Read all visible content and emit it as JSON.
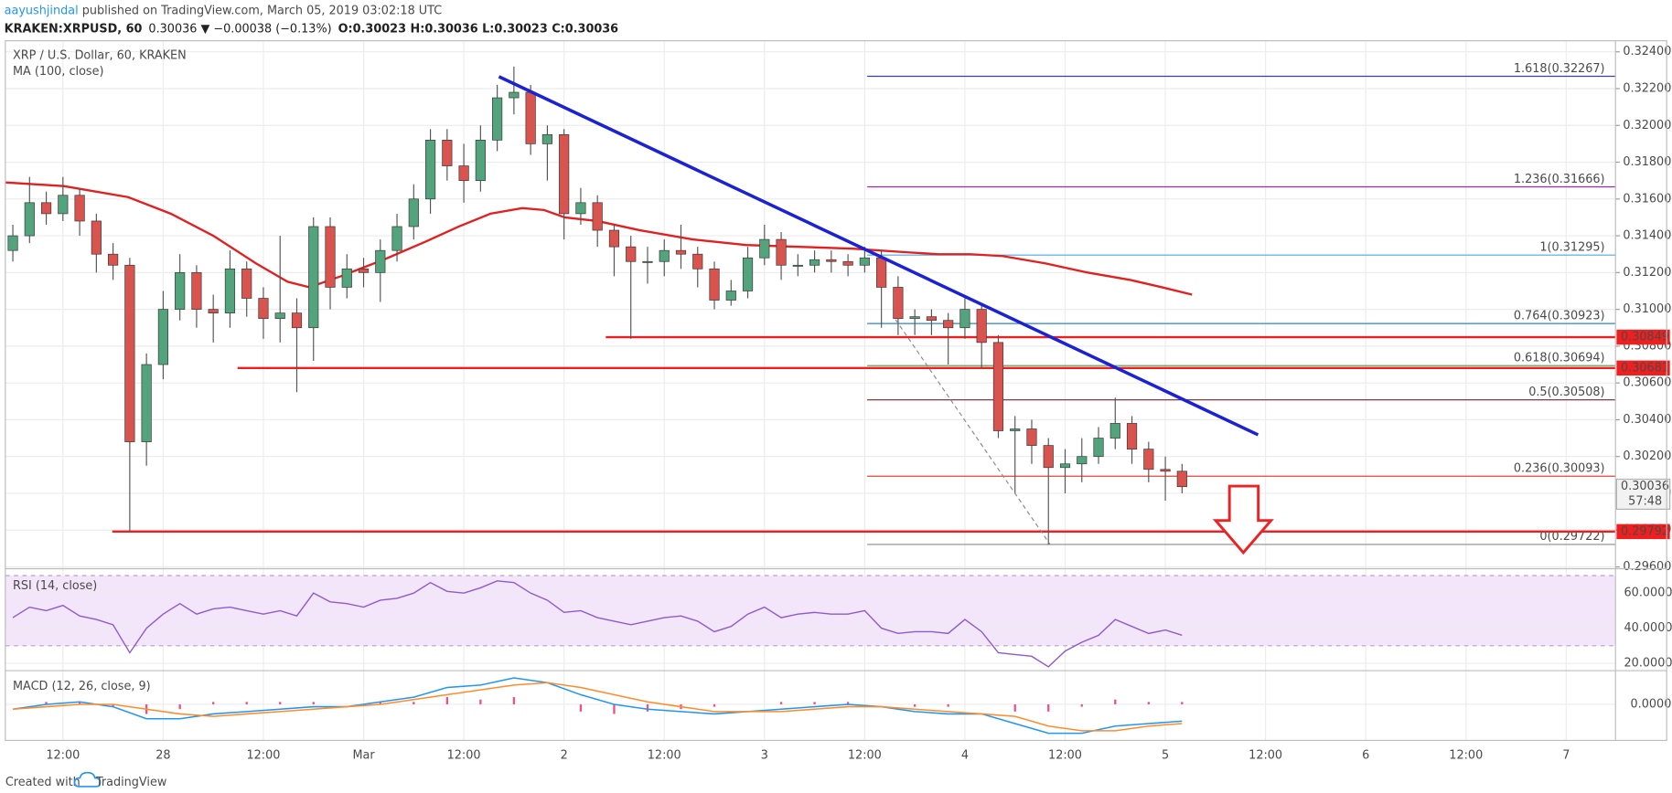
{
  "header": {
    "author": "aayushjindal",
    "published": " published on TradingView.com, March 05, 2019 03:02:18 UTC",
    "symbol": "KRAKEN:XRPUSD, 60",
    "quote": "0.30036 ▼ −0.00038 (−0.13%)",
    "ohlc": "O:0.30023 H:0.30036 L:0.30023 C:0.30036"
  },
  "footer": {
    "created": "Created with",
    "brand": "TradingView"
  },
  "chart_data": {
    "type": "candlestick",
    "title": "XRP / U.S. Dollar, 60, KRAKEN",
    "up_color": "#53a37c",
    "down_color": "#d9534f",
    "grid": true,
    "xlim": [
      -18.9,
      173.9
    ],
    "xticks": [
      {
        "value": -12,
        "label": "12:00"
      },
      {
        "value": 0,
        "label": "28"
      },
      {
        "value": 12,
        "label": "12:00"
      },
      {
        "value": 24,
        "label": "Mar"
      },
      {
        "value": 36,
        "label": "12:00"
      },
      {
        "value": 48,
        "label": "2"
      },
      {
        "value": 60,
        "label": "12:00"
      },
      {
        "value": 72,
        "label": "3"
      },
      {
        "value": 84,
        "label": "12:00"
      },
      {
        "value": 96,
        "label": "4"
      },
      {
        "value": 108,
        "label": "12:00"
      },
      {
        "value": 120,
        "label": "5"
      },
      {
        "value": 132,
        "label": "12:00"
      },
      {
        "value": 144,
        "label": "6"
      },
      {
        "value": 156,
        "label": "12:00"
      },
      {
        "value": 168,
        "label": "7"
      }
    ],
    "ylim": [
      0.2959,
      0.3246
    ],
    "yticks": [
      {
        "value": 0.296,
        "label": "0.29600"
      },
      {
        "value": 0.298,
        "label": "0.29800"
      },
      {
        "value": 0.3,
        "label": "0.30000"
      },
      {
        "value": 0.302,
        "label": "0.30200"
      },
      {
        "value": 0.304,
        "label": "0.30400"
      },
      {
        "value": 0.306,
        "label": "0.30600"
      },
      {
        "value": 0.308,
        "label": "0.30800"
      },
      {
        "value": 0.31,
        "label": "0.31000"
      },
      {
        "value": 0.312,
        "label": "0.31200"
      },
      {
        "value": 0.314,
        "label": "0.31400"
      },
      {
        "value": 0.316,
        "label": "0.31600"
      },
      {
        "value": 0.318,
        "label": "0.31800"
      },
      {
        "value": 0.32,
        "label": "0.32000"
      },
      {
        "value": 0.322,
        "label": "0.32200"
      },
      {
        "value": 0.324,
        "label": "0.32400"
      }
    ],
    "x": [
      -18,
      -16,
      -14,
      -12,
      -10,
      -8,
      -6,
      -4,
      -2,
      0,
      2,
      4,
      6,
      8,
      10,
      12,
      14,
      16,
      18,
      20,
      22,
      24,
      26,
      28,
      30,
      32,
      34,
      36,
      38,
      40,
      42,
      44,
      46,
      48,
      50,
      52,
      54,
      56,
      58,
      60,
      62,
      64,
      66,
      68,
      70,
      72,
      74,
      76,
      78,
      80,
      82,
      84,
      86,
      88,
      90,
      92,
      94,
      96,
      98,
      100,
      102,
      104,
      106,
      108,
      110,
      112,
      114,
      116,
      118,
      120,
      122
    ],
    "open": [
      0.3132,
      0.314,
      0.3158,
      0.3152,
      0.3162,
      0.3148,
      0.313,
      0.3124,
      0.3028,
      0.307,
      0.31,
      0.312,
      0.31,
      0.3098,
      0.3122,
      0.3106,
      0.3095,
      0.3098,
      0.309,
      0.3145,
      0.3112,
      0.3122,
      0.312,
      0.3132,
      0.3145,
      0.316,
      0.3192,
      0.3178,
      0.317,
      0.3192,
      0.3215,
      0.3218,
      0.319,
      0.3195,
      0.3152,
      0.3158,
      0.3143,
      0.3134,
      0.3126,
      0.3126,
      0.3132,
      0.313,
      0.3122,
      0.3105,
      0.311,
      0.3128,
      0.3138,
      0.3124,
      0.3124,
      0.3127,
      0.3126,
      0.3124,
      0.3128,
      0.3112,
      0.3095,
      0.3096,
      0.3094,
      0.309,
      0.31,
      0.3082,
      0.3034,
      0.3035,
      0.3026,
      0.3014,
      0.3016,
      0.302,
      0.303,
      0.3038,
      0.3024,
      0.3013,
      0.3012
    ],
    "high": [
      0.3146,
      0.3172,
      0.3164,
      0.3172,
      0.3166,
      0.3152,
      0.3136,
      0.3128,
      0.3076,
      0.311,
      0.313,
      0.3124,
      0.3108,
      0.3132,
      0.3126,
      0.3112,
      0.314,
      0.3106,
      0.315,
      0.315,
      0.313,
      0.3128,
      0.3138,
      0.3152,
      0.3168,
      0.3198,
      0.3198,
      0.319,
      0.32,
      0.3222,
      0.3232,
      0.3222,
      0.32,
      0.3198,
      0.3166,
      0.3162,
      0.3146,
      0.314,
      0.3134,
      0.3138,
      0.3146,
      0.3134,
      0.3126,
      0.3116,
      0.3134,
      0.3146,
      0.3142,
      0.313,
      0.3132,
      0.3132,
      0.313,
      0.3134,
      0.3132,
      0.3118,
      0.31,
      0.31,
      0.3098,
      0.3106,
      0.3102,
      0.3086,
      0.3042,
      0.304,
      0.303,
      0.3024,
      0.303,
      0.3036,
      0.3052,
      0.3042,
      0.3028,
      0.302,
      0.3016
    ],
    "low": [
      0.3126,
      0.3136,
      0.3146,
      0.3148,
      0.314,
      0.312,
      0.3116,
      0.2979,
      0.3015,
      0.3062,
      0.3094,
      0.309,
      0.3082,
      0.309,
      0.3096,
      0.3084,
      0.3082,
      0.3055,
      0.3072,
      0.31,
      0.3106,
      0.3112,
      0.3104,
      0.3126,
      0.3138,
      0.3152,
      0.317,
      0.3158,
      0.3164,
      0.3186,
      0.3206,
      0.3184,
      0.317,
      0.3138,
      0.3146,
      0.3134,
      0.3118,
      0.3084,
      0.3114,
      0.3118,
      0.3122,
      0.3112,
      0.31,
      0.3102,
      0.3106,
      0.3124,
      0.3116,
      0.3118,
      0.312,
      0.312,
      0.3118,
      0.312,
      0.309,
      0.3086,
      0.3086,
      0.3086,
      0.307,
      0.3084,
      0.3068,
      0.303,
      0.3,
      0.3016,
      0.2972,
      0.3,
      0.3006,
      0.3016,
      0.3024,
      0.3016,
      0.3006,
      0.2996,
      0.3
    ],
    "close": [
      0.314,
      0.3158,
      0.3152,
      0.3162,
      0.3148,
      0.313,
      0.3124,
      0.3028,
      0.307,
      0.31,
      0.312,
      0.31,
      0.3098,
      0.3122,
      0.3106,
      0.3095,
      0.3098,
      0.309,
      0.3145,
      0.3112,
      0.3122,
      0.312,
      0.3132,
      0.3145,
      0.316,
      0.3192,
      0.3178,
      0.317,
      0.3192,
      0.3215,
      0.3218,
      0.319,
      0.3195,
      0.3152,
      0.3158,
      0.3143,
      0.3134,
      0.3126,
      0.3126,
      0.3132,
      0.313,
      0.3122,
      0.3105,
      0.311,
      0.3128,
      0.3138,
      0.3124,
      0.3124,
      0.3127,
      0.3126,
      0.3124,
      0.3128,
      0.3112,
      0.3095,
      0.3096,
      0.3094,
      0.309,
      0.31,
      0.3082,
      0.3034,
      0.3035,
      0.3026,
      0.3014,
      0.3016,
      0.302,
      0.303,
      0.3038,
      0.3024,
      0.3013,
      0.3012,
      0.30036
    ],
    "ma": {
      "name": "MA (100, close)",
      "color": "#e31f1f",
      "x": [
        -18.9,
        -11.9,
        -4.2,
        0.9,
        6.0,
        11.1,
        14.9,
        17.5,
        21.3,
        26.4,
        31.5,
        35.4,
        39.2,
        43.0,
        45.6,
        48.1,
        52.0,
        57.1,
        63.4,
        69.8,
        76.2,
        82.6,
        89.0,
        92.8,
        96.6,
        100.5,
        105.6,
        110.7,
        115.8,
        119.6,
        123.2
      ],
      "values": [
        0.3169,
        0.3167,
        0.3161,
        0.3152,
        0.314,
        0.3125,
        0.3115,
        0.3112,
        0.3118,
        0.3127,
        0.3137,
        0.3145,
        0.3152,
        0.3155,
        0.3154,
        0.315,
        0.3148,
        0.3143,
        0.3138,
        0.3135,
        0.3134,
        0.3133,
        0.3131,
        0.313,
        0.313,
        0.3129,
        0.3125,
        0.312,
        0.3116,
        0.3112,
        0.3108
      ]
    },
    "trendline": {
      "color": "#1b22d6",
      "x": [
        40.2,
        131.1
      ],
      "values": [
        0.32265,
        0.30318
      ]
    },
    "fib_guide": {
      "color": "#8a8a8a",
      "x": [
        87.7,
        106.2
      ],
      "values": [
        0.30944,
        0.29722
      ]
    },
    "fib_x": [
      84.3,
      173.9
    ],
    "fib_levels": [
      {
        "value": 0.32267,
        "label": "1.618(0.32267)",
        "color": "#3340a8"
      },
      {
        "value": 0.31666,
        "label": "1.236(0.31666)",
        "color": "#9c27b0"
      },
      {
        "value": 0.31295,
        "label": "1(0.31295)",
        "color": "#4aa8e0"
      },
      {
        "value": 0.30923,
        "label": "0.764(0.30923)",
        "color": "#2a86c8"
      },
      {
        "value": 0.30694,
        "label": "0.618(0.30694)",
        "color": "#3fa14a"
      },
      {
        "value": 0.30508,
        "label": "0.5(0.30508)",
        "color": "#7a1f2b"
      },
      {
        "value": 0.30093,
        "label": "0.236(0.30093)",
        "color": "#e0453a"
      },
      {
        "value": 0.29722,
        "label": "0(0.29722)",
        "color": "#8a8a8a"
      }
    ],
    "support_color": "#f01e1e",
    "support_lines": [
      {
        "x": [
          53.0,
          173.9
        ],
        "value": 0.30849
      },
      {
        "x": [
          8.9,
          173.9
        ],
        "value": 0.30681
      },
      {
        "x": [
          -6.1,
          173.9
        ],
        "value": 0.29792
      }
    ],
    "last_price": 0.30036,
    "countdown": "57:48",
    "rsi": {
      "title": "RSI (14, close)",
      "color": "#8e5ad0",
      "band": [
        30,
        70
      ],
      "ylim": [
        15.8,
        73.9
      ],
      "yticks": [
        {
          "value": 20,
          "label": "20.0000"
        },
        {
          "value": 40,
          "label": "40.0000"
        },
        {
          "value": 60,
          "label": "60.0000"
        }
      ],
      "values": [
        46,
        52,
        50,
        53,
        47,
        45,
        42,
        26,
        40,
        48,
        54,
        48,
        51,
        52,
        50,
        48,
        50,
        47,
        60,
        55,
        54,
        52,
        56,
        57,
        60,
        66,
        61,
        60,
        63,
        67,
        66,
        60,
        56,
        49,
        50,
        46,
        44,
        42,
        44,
        46,
        47,
        44,
        38,
        41,
        48,
        52,
        46,
        48,
        49,
        48,
        48,
        50,
        40,
        37,
        38,
        38,
        37,
        45,
        38,
        26,
        25,
        24,
        18,
        27,
        32,
        36,
        45,
        41,
        37,
        39,
        36
      ]
    },
    "macd": {
      "title": "MACD (12, 26, close, 9)",
      "macd_color": "#2196f3",
      "signal_color": "#ff8c2a",
      "histogram_color": "#f0508a",
      "ylim": [
        -0.0015,
        0.0014
      ],
      "yticks": [
        {
          "value": 0,
          "label": "0.0000"
        }
      ],
      "x": [
        -18,
        -14,
        -10,
        -6,
        -2,
        2,
        6,
        10,
        14,
        18,
        22,
        26,
        30,
        34,
        38,
        42,
        46,
        50,
        54,
        58,
        62,
        66,
        70,
        74,
        78,
        82,
        86,
        90,
        94,
        98,
        102,
        106,
        110,
        114,
        118,
        122
      ],
      "macd_values": [
        -0.0002,
        0.0,
        0.0001,
        -0.0001,
        -0.0006,
        -0.0006,
        -0.0004,
        -0.0003,
        -0.0002,
        -0.0001,
        -0.0001,
        0.0001,
        0.0003,
        0.0007,
        0.0008,
        0.0011,
        0.0009,
        0.0004,
        0.0,
        -0.0002,
        -0.0003,
        -0.0004,
        -0.0003,
        -0.0002,
        -0.0001,
        0.0,
        -0.0001,
        -0.0003,
        -0.0004,
        -0.0004,
        -0.0008,
        -0.0012,
        -0.0012,
        -0.0009,
        -0.0008,
        -0.0007
      ],
      "signal_values": [
        -0.0002,
        -0.0001,
        0.0,
        0.0,
        -0.0002,
        -0.0004,
        -0.0005,
        -0.0004,
        -0.0003,
        -0.0002,
        -0.0001,
        0.0,
        0.0002,
        0.0004,
        0.0006,
        0.0008,
        0.0009,
        0.0007,
        0.0004,
        0.0001,
        -0.0001,
        -0.0003,
        -0.0003,
        -0.0003,
        -0.0002,
        -0.0001,
        -0.0001,
        -0.0002,
        -0.0003,
        -0.0004,
        -0.0005,
        -0.0009,
        -0.0011,
        -0.0011,
        -0.0009,
        -0.0008
      ],
      "histogram": [
        0,
        0.0001,
        0.0001,
        -0.0001,
        -0.0004,
        -0.0002,
        0.0001,
        0.0001,
        0.0001,
        0.0001,
        0,
        0.0001,
        0.0001,
        0.0003,
        0.0002,
        0.0003,
        0,
        -0.0003,
        -0.0004,
        -0.0003,
        -0.0002,
        -0.0001,
        0,
        0.0001,
        0.0001,
        0.0001,
        0,
        -0.0001,
        -0.0001,
        0,
        -0.0003,
        -0.0003,
        -0.0001,
        0.0002,
        0.0001,
        0.0001
      ]
    }
  }
}
